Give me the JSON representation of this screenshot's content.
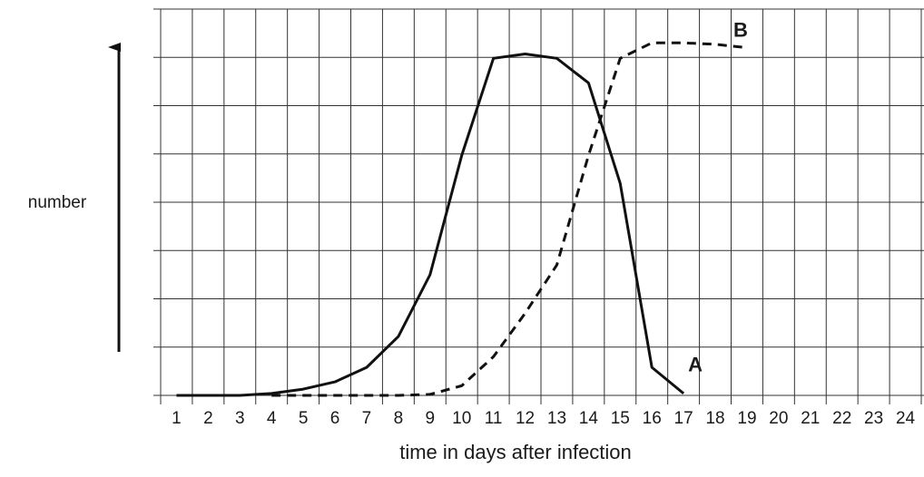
{
  "chart_data": {
    "type": "line",
    "x_label": "time in days after infection",
    "y_label": "number",
    "x": [
      1,
      2,
      3,
      4,
      5,
      6,
      7,
      8,
      9,
      10,
      11,
      12,
      13,
      14,
      15,
      16,
      17,
      18,
      19,
      20,
      21,
      22,
      23,
      24
    ],
    "xlim": [
      0.5,
      24.5
    ],
    "xticks": [
      1,
      2,
      3,
      4,
      5,
      6,
      7,
      8,
      9,
      10,
      11,
      12,
      13,
      14,
      15,
      16,
      17,
      18,
      19,
      20,
      21,
      22,
      23,
      24
    ],
    "ylim": [
      0,
      8
    ],
    "yticks": [
      0,
      1,
      2,
      3,
      4,
      5,
      6,
      7,
      8
    ],
    "grid": true,
    "series": [
      {
        "name": "A",
        "color": "#111111",
        "dash": false,
        "values": [
          0,
          0,
          0,
          0.04,
          0.13,
          0.28,
          0.58,
          1.22,
          2.5,
          4.97,
          6.98,
          7.07,
          6.98,
          6.47,
          4.39,
          0.58,
          0.04,
          null,
          null,
          null,
          null,
          null,
          null,
          null
        ]
      },
      {
        "name": "B",
        "color": "#111111",
        "dash": true,
        "values": [
          null,
          null,
          null,
          0,
          0,
          0,
          0,
          0,
          0.02,
          0.2,
          0.8,
          1.7,
          2.7,
          4.97,
          6.98,
          7.3,
          7.3,
          7.27,
          7.2,
          null,
          null,
          null,
          null,
          null
        ]
      }
    ]
  }
}
